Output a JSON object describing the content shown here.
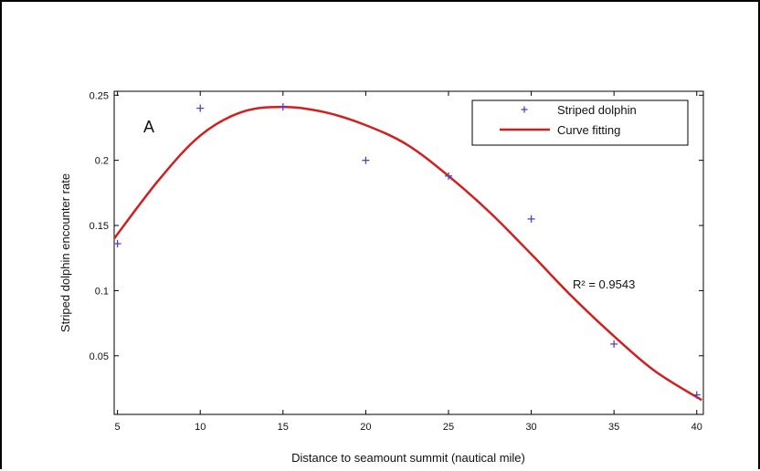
{
  "chart_data": {
    "type": "scatter",
    "panel_label": "A",
    "xlabel": "Distance to seamount summit (nautical mile)",
    "ylabel": "Striped dolphin encounter rate",
    "xlim": [
      4.8,
      40.4
    ],
    "ylim": [
      0.005,
      0.253
    ],
    "xticks": [
      "5",
      "10",
      "15",
      "20",
      "25",
      "30",
      "35",
      "40"
    ],
    "yticks": [
      "0.05",
      "0.1",
      "0.15",
      "0.2",
      "0.25"
    ],
    "grid": false,
    "legend_position": "top-right",
    "series": [
      {
        "name": "Striped dolphin",
        "type": "scatter",
        "marker": "+",
        "color": "#5b3fb8",
        "points": [
          {
            "x": 5,
            "y": 0.136
          },
          {
            "x": 10,
            "y": 0.24
          },
          {
            "x": 15,
            "y": 0.241
          },
          {
            "x": 20,
            "y": 0.2
          },
          {
            "x": 25,
            "y": 0.188
          },
          {
            "x": 30,
            "y": 0.155
          },
          {
            "x": 35,
            "y": 0.059
          },
          {
            "x": 40,
            "y": 0.02
          }
        ]
      },
      {
        "name": "Curve fitting",
        "type": "line",
        "color": "#d11f1f",
        "points": [
          {
            "x": 4.8,
            "y": 0.14
          },
          {
            "x": 7.5,
            "y": 0.185
          },
          {
            "x": 10,
            "y": 0.219
          },
          {
            "x": 12.5,
            "y": 0.237
          },
          {
            "x": 15,
            "y": 0.241
          },
          {
            "x": 17.5,
            "y": 0.237
          },
          {
            "x": 20,
            "y": 0.227
          },
          {
            "x": 22.5,
            "y": 0.212
          },
          {
            "x": 25,
            "y": 0.188
          },
          {
            "x": 27.5,
            "y": 0.16
          },
          {
            "x": 30,
            "y": 0.128
          },
          {
            "x": 32.5,
            "y": 0.095
          },
          {
            "x": 35,
            "y": 0.065
          },
          {
            "x": 37.5,
            "y": 0.038
          },
          {
            "x": 40.3,
            "y": 0.016
          }
        ]
      }
    ],
    "annotation": "R² = 0.9543"
  }
}
